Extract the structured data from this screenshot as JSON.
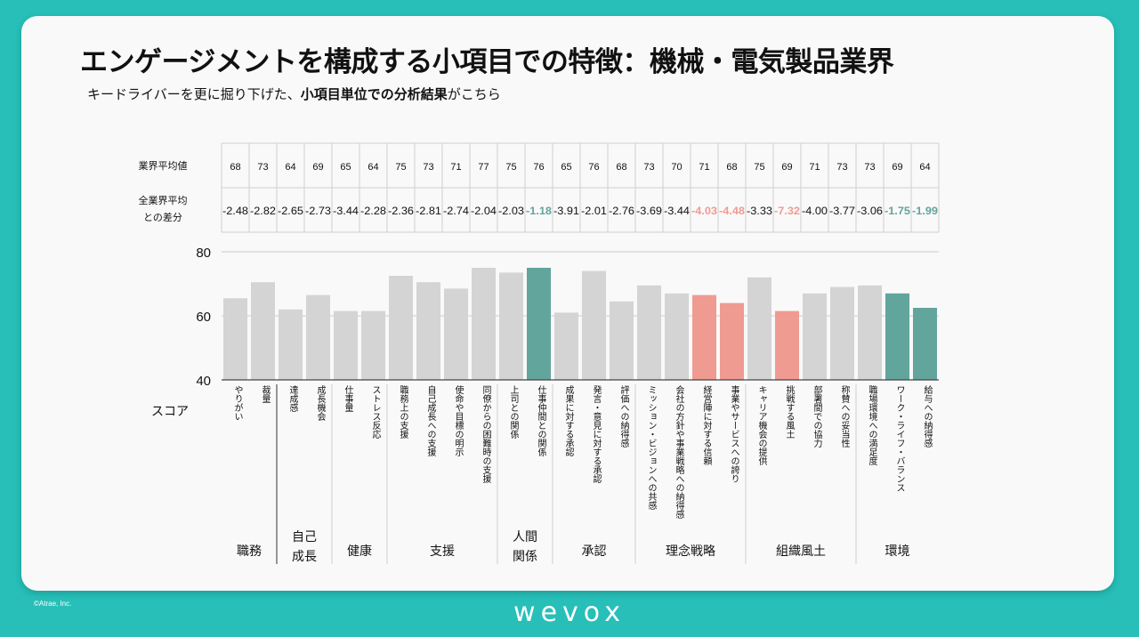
{
  "title": "エンゲージメントを構成する小項目での特徴：機械・電気製品業界",
  "subtitle": {
    "part1": "キードライバーを更に掘り下げた、",
    "bold": "小項目単位での分析結果",
    "part2": "がこちら"
  },
  "footer": {
    "copyright": "©Atrae, Inc.",
    "logo": "wevox"
  },
  "colors": {
    "neutral": "#d4d4d4",
    "strength": "#62a59c",
    "weakness": "#ef9b91",
    "teal_background": "#27bfb8"
  },
  "table": {
    "row1_label": "業界平均値",
    "row2_label_line1": "全業界平均",
    "row2_label_line2": "との差分"
  },
  "chart_data": {
    "type": "bar",
    "ylabel": "スコア",
    "ylim": [
      40,
      80
    ],
    "yticks": [
      40,
      60,
      80
    ],
    "gridlines": [
      60,
      80
    ],
    "categories": [
      "やりがい",
      "裁量",
      "達成感",
      "成長機会",
      "仕事量",
      "ストレス反応",
      "職務上の支援",
      "自己成長への支援",
      "使命や目標の明示",
      "同僚からの困難時の支援",
      "上司との関係",
      "仕事仲間との関係",
      "成果に対する承認",
      "発言・意見に対する承認",
      "評価への納得感",
      "ミッション・ビジョンへの共感",
      "会社の方針や事業戦略への納得感",
      "経営陣に対する信頼",
      "事業やサービスへの誇り",
      "キャリア機会の提供",
      "挑戦する風土",
      "部署間での協力",
      "称賛への妥当性",
      "職場環境への満足度",
      "ワーク・ライフ・バランス",
      "給与への納得感"
    ],
    "values": [
      65.5,
      70.5,
      62,
      66.5,
      61.5,
      61.5,
      72.5,
      70.5,
      68.5,
      75,
      73.5,
      75,
      61,
      74,
      64.5,
      69.5,
      67,
      66.5,
      64,
      72,
      61.5,
      67,
      69,
      69.5,
      67,
      62.5
    ],
    "industry_avg": [
      "68",
      "73",
      "64",
      "69",
      "65",
      "64",
      "75",
      "73",
      "71",
      "77",
      "75",
      "76",
      "65",
      "76",
      "68",
      "73",
      "70",
      "71",
      "68",
      "75",
      "69",
      "71",
      "73",
      "73",
      "69",
      "64"
    ],
    "diff": [
      "-2.48",
      "-2.82",
      "-2.65",
      "-2.73",
      "-3.44",
      "-2.28",
      "-2.36",
      "-2.81",
      "-2.74",
      "-2.04",
      "-2.03",
      "-1.18",
      "-3.91",
      "-2.01",
      "-2.76",
      "-3.69",
      "-3.44",
      "-4.03",
      "-4.48",
      "-3.33",
      "-7.32",
      "-4.00",
      "-3.77",
      "-3.06",
      "-1.75",
      "-1.99"
    ],
    "highlight": [
      "none",
      "none",
      "none",
      "none",
      "none",
      "none",
      "none",
      "none",
      "none",
      "none",
      "none",
      "strength",
      "none",
      "none",
      "none",
      "none",
      "none",
      "weakness",
      "weakness",
      "none",
      "weakness",
      "none",
      "none",
      "none",
      "strength",
      "strength"
    ],
    "groups": [
      {
        "name": "職務",
        "count": 2
      },
      {
        "name": "自己成長",
        "count": 2
      },
      {
        "name": "健康",
        "count": 2
      },
      {
        "name": "支援",
        "count": 4
      },
      {
        "name": "人間関係",
        "count": 2
      },
      {
        "name": "承認",
        "count": 3
      },
      {
        "name": "理念戦略",
        "count": 4
      },
      {
        "name": "組織風土",
        "count": 4
      },
      {
        "name": "環境",
        "count": 3
      }
    ]
  }
}
